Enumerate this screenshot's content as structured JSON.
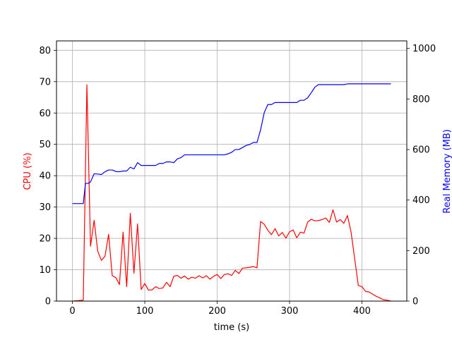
{
  "chart_data": {
    "type": "line",
    "xlabel": "time (s)",
    "ylabel_left": "CPU (%)",
    "ylabel_right": "Real Memory (MB)",
    "xlim": [
      -22,
      462
    ],
    "ylim_left": [
      0,
      83
    ],
    "ylim_right": [
      0,
      1030
    ],
    "x_ticks": [
      0,
      100,
      200,
      300,
      400
    ],
    "y_ticks_left": [
      0,
      10,
      20,
      30,
      40,
      50,
      60,
      70,
      80
    ],
    "y_ticks_right": [
      0,
      200,
      400,
      600,
      800,
      1000
    ],
    "grid": true,
    "colors": {
      "cpu": "#ff0000",
      "memory": "#0000ff",
      "grid": "#b0b0b0",
      "axes": "#000000"
    },
    "series": [
      {
        "axis": "left",
        "color": "#ff0000",
        "points": [
          [
            0,
            0
          ],
          [
            15,
            0.3
          ],
          [
            20,
            69
          ],
          [
            25,
            17.5
          ],
          [
            30,
            25.8
          ],
          [
            35,
            15.9
          ],
          [
            40,
            13
          ],
          [
            45,
            14.3
          ],
          [
            50,
            21.3
          ],
          [
            55,
            8.1
          ],
          [
            60,
            7.5
          ],
          [
            65,
            5.3
          ],
          [
            70,
            22
          ],
          [
            75,
            4.6
          ],
          [
            80,
            28
          ],
          [
            85,
            8.9
          ],
          [
            90,
            24.6
          ],
          [
            95,
            3.7
          ],
          [
            100,
            5.6
          ],
          [
            105,
            3.5
          ],
          [
            110,
            3.6
          ],
          [
            115,
            4.6
          ],
          [
            120,
            4
          ],
          [
            125,
            4.2
          ],
          [
            130,
            6
          ],
          [
            135,
            4.6
          ],
          [
            140,
            7.9
          ],
          [
            145,
            8.2
          ],
          [
            150,
            7.3
          ],
          [
            155,
            8
          ],
          [
            160,
            7
          ],
          [
            165,
            7.6
          ],
          [
            170,
            7.3
          ],
          [
            175,
            8.1
          ],
          [
            180,
            7.4
          ],
          [
            185,
            8.1
          ],
          [
            190,
            7
          ],
          [
            195,
            7.9
          ],
          [
            200,
            8.5
          ],
          [
            205,
            7.2
          ],
          [
            210,
            8.5
          ],
          [
            215,
            8.7
          ],
          [
            220,
            8.2
          ],
          [
            225,
            9.8
          ],
          [
            230,
            8.8
          ],
          [
            235,
            10.5
          ],
          [
            240,
            10.6
          ],
          [
            245,
            10.8
          ],
          [
            250,
            11
          ],
          [
            255,
            10.6
          ],
          [
            260,
            25.4
          ],
          [
            265,
            24.5
          ],
          [
            270,
            22.6
          ],
          [
            275,
            21.2
          ],
          [
            280,
            23.1
          ],
          [
            285,
            20.8
          ],
          [
            290,
            21.9
          ],
          [
            295,
            20.1
          ],
          [
            300,
            22.1
          ],
          [
            305,
            22.7
          ],
          [
            310,
            20.2
          ],
          [
            315,
            22
          ],
          [
            320,
            21.7
          ],
          [
            325,
            25.2
          ],
          [
            330,
            26.1
          ],
          [
            335,
            25.6
          ],
          [
            340,
            25.7
          ],
          [
            345,
            26
          ],
          [
            350,
            26.5
          ],
          [
            355,
            25.1
          ],
          [
            360,
            29.1
          ],
          [
            365,
            25.2
          ],
          [
            370,
            26
          ],
          [
            375,
            24.8
          ],
          [
            380,
            27.3
          ],
          [
            385,
            22
          ],
          [
            390,
            13.5
          ],
          [
            395,
            5
          ],
          [
            400,
            4.6
          ],
          [
            405,
            3.1
          ],
          [
            410,
            2.9
          ],
          [
            415,
            2.2
          ],
          [
            420,
            1.5
          ],
          [
            425,
            1
          ],
          [
            430,
            0.4
          ],
          [
            435,
            0.3
          ],
          [
            440,
            0
          ]
        ]
      },
      {
        "axis": "right",
        "color": "#0000ff",
        "points": [
          [
            0,
            386
          ],
          [
            15,
            386
          ],
          [
            18,
            466
          ],
          [
            22,
            466
          ],
          [
            25,
            472
          ],
          [
            30,
            504
          ],
          [
            35,
            503
          ],
          [
            40,
            501
          ],
          [
            45,
            512
          ],
          [
            50,
            519
          ],
          [
            55,
            519
          ],
          [
            60,
            513
          ],
          [
            65,
            512
          ],
          [
            70,
            515
          ],
          [
            75,
            515
          ],
          [
            80,
            530
          ],
          [
            85,
            523
          ],
          [
            90,
            548
          ],
          [
            95,
            537
          ],
          [
            100,
            537
          ],
          [
            105,
            537
          ],
          [
            110,
            537
          ],
          [
            115,
            537
          ],
          [
            120,
            545
          ],
          [
            125,
            545
          ],
          [
            130,
            551
          ],
          [
            135,
            551
          ],
          [
            140,
            548
          ],
          [
            145,
            563
          ],
          [
            150,
            568
          ],
          [
            155,
            579
          ],
          [
            160,
            579
          ],
          [
            165,
            579
          ],
          [
            170,
            579
          ],
          [
            175,
            579
          ],
          [
            180,
            579
          ],
          [
            185,
            579
          ],
          [
            190,
            579
          ],
          [
            195,
            579
          ],
          [
            200,
            579
          ],
          [
            205,
            579
          ],
          [
            210,
            579
          ],
          [
            215,
            583
          ],
          [
            220,
            589
          ],
          [
            225,
            600
          ],
          [
            230,
            600
          ],
          [
            235,
            608
          ],
          [
            240,
            616
          ],
          [
            245,
            620
          ],
          [
            250,
            628
          ],
          [
            255,
            628
          ],
          [
            260,
            678
          ],
          [
            265,
            746
          ],
          [
            270,
            778
          ],
          [
            275,
            778
          ],
          [
            280,
            786
          ],
          [
            285,
            786
          ],
          [
            290,
            786
          ],
          [
            295,
            786
          ],
          [
            300,
            786
          ],
          [
            305,
            786
          ],
          [
            310,
            786
          ],
          [
            315,
            795
          ],
          [
            320,
            795
          ],
          [
            325,
            805
          ],
          [
            330,
            825
          ],
          [
            335,
            847
          ],
          [
            340,
            857
          ],
          [
            345,
            857
          ],
          [
            350,
            857
          ],
          [
            355,
            857
          ],
          [
            360,
            857
          ],
          [
            365,
            857
          ],
          [
            370,
            857
          ],
          [
            375,
            857
          ],
          [
            380,
            860
          ],
          [
            385,
            860
          ],
          [
            390,
            860
          ],
          [
            395,
            860
          ],
          [
            400,
            860
          ],
          [
            410,
            860
          ],
          [
            420,
            860
          ],
          [
            430,
            860
          ],
          [
            440,
            860
          ]
        ]
      }
    ]
  }
}
